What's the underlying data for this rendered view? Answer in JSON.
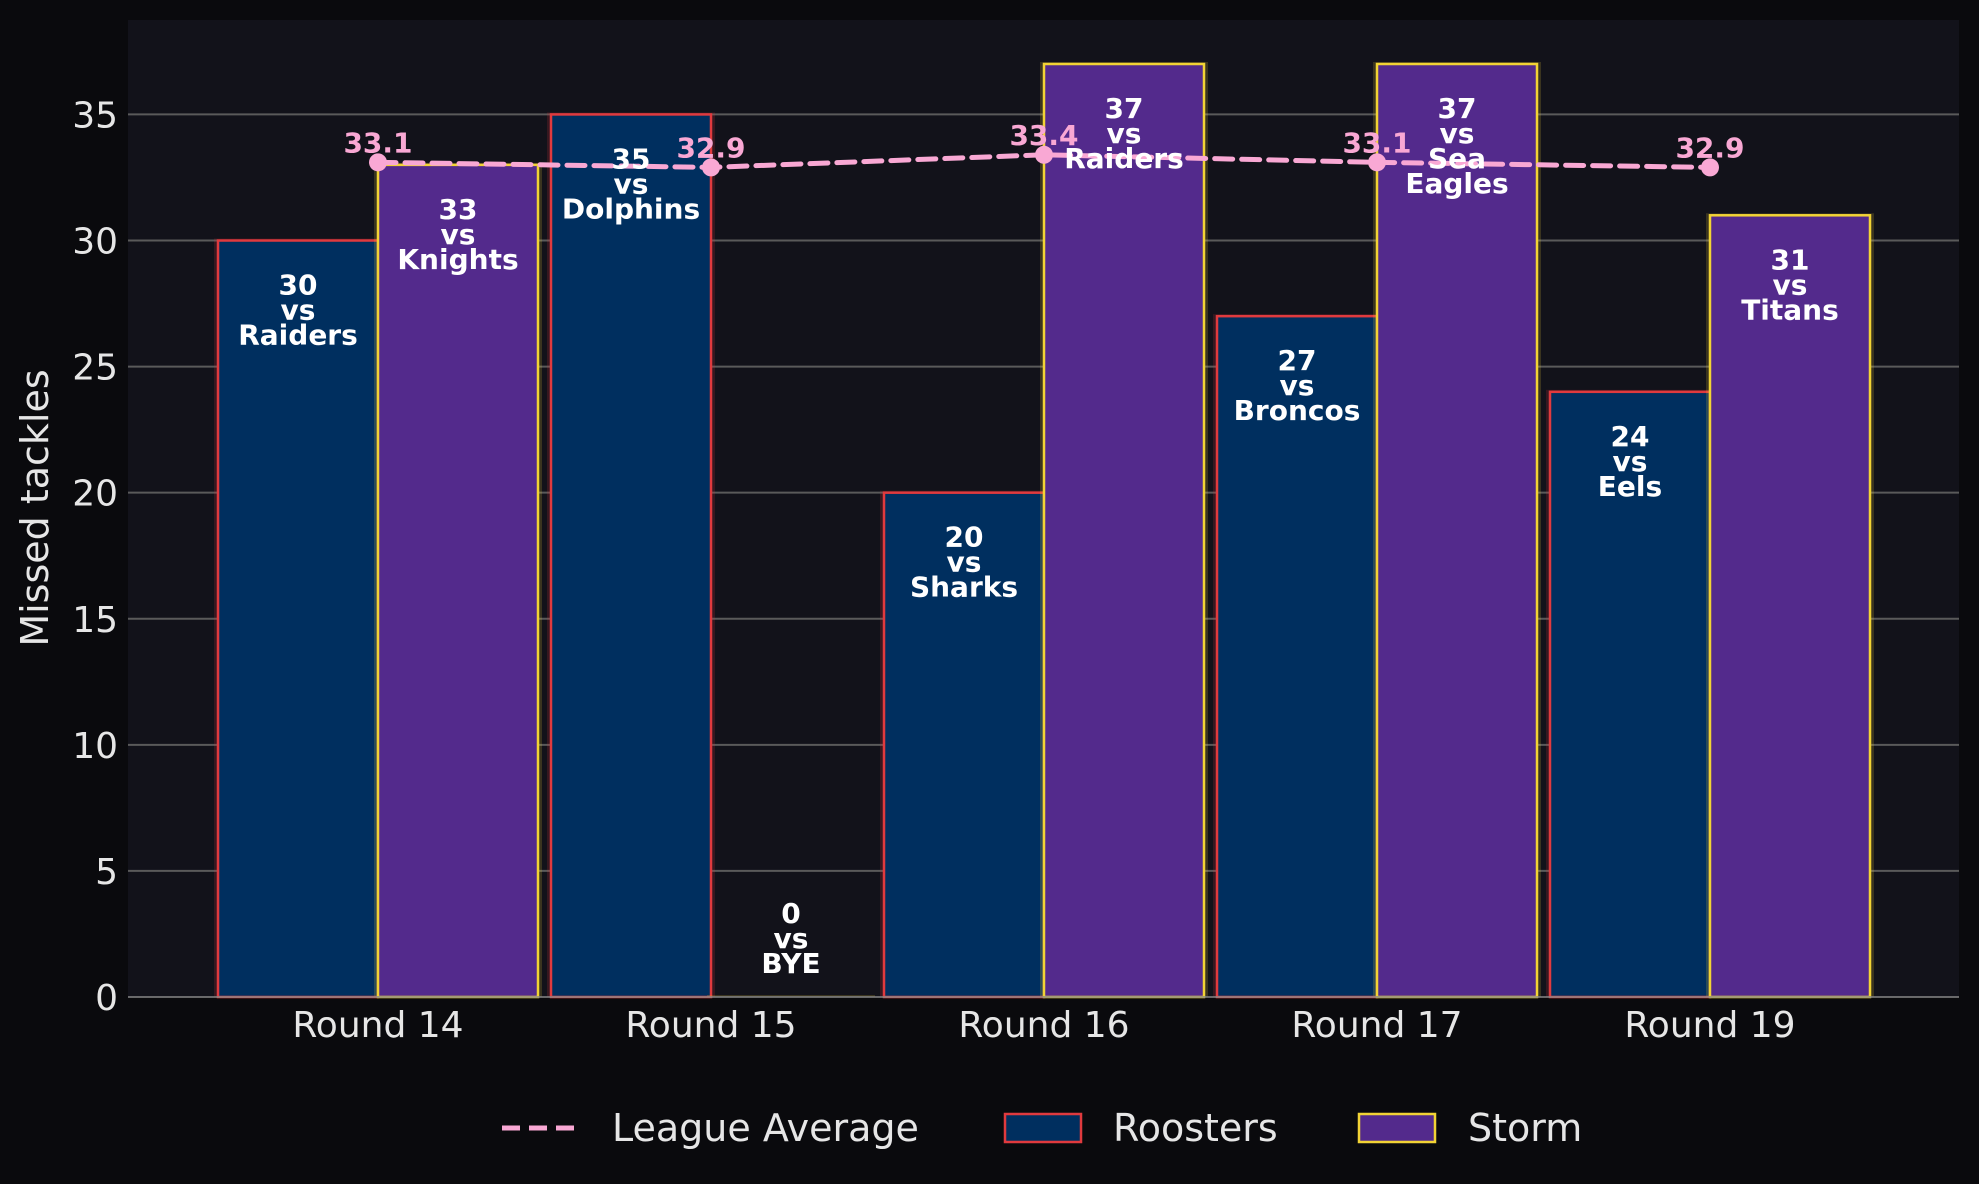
{
  "chart_data": {
    "type": "bar",
    "ylabel": "Missed tackles",
    "ylim": [
      0,
      38.8
    ],
    "yticks": [
      0,
      5,
      10,
      15,
      20,
      25,
      30,
      35
    ],
    "categories": [
      "Round 14",
      "Round 15",
      "Round 16",
      "Round 17",
      "Round 19"
    ],
    "grid": "horizontal",
    "legend_position": "bottom",
    "series": [
      {
        "name": "Roosters",
        "values": [
          30,
          35,
          20,
          27,
          24
        ],
        "opponents": [
          "Raiders",
          "Dolphins",
          "Sharks",
          "Broncos",
          "Eels"
        ],
        "labels": [
          "30\nvs\nRaiders",
          "35\nvs\nDolphins",
          "20\nvs\nSharks",
          "27\nvs\nBroncos",
          "24\nvs\nEels"
        ],
        "fill": "#002f5f",
        "edge": "#e03a3e"
      },
      {
        "name": "Storm",
        "values": [
          33,
          0,
          37,
          37,
          31
        ],
        "opponents": [
          "Knights",
          "BYE",
          "Raiders",
          "Sea Eagles",
          "Titans"
        ],
        "labels": [
          "33\nvs\nKnights",
          "0\nvs\nBYE",
          "37\nvs\nRaiders",
          "37\nvs\nSea\nEagles",
          "31\nvs\nTitans"
        ],
        "fill": "#532a8c",
        "edge": "#f2d335"
      }
    ],
    "line": {
      "name": "League Average",
      "values": [
        33.1,
        32.9,
        33.4,
        33.1,
        32.9
      ],
      "labels": [
        "33.1",
        "32.9",
        "33.4",
        "33.1",
        "32.9"
      ],
      "color": "#f9a8d4",
      "style": "dashed"
    }
  },
  "colors": {
    "background": "#0a0a0d",
    "plot_background": "#12121a",
    "grid": "#5a5a5a",
    "text": "#e6e6e6"
  }
}
